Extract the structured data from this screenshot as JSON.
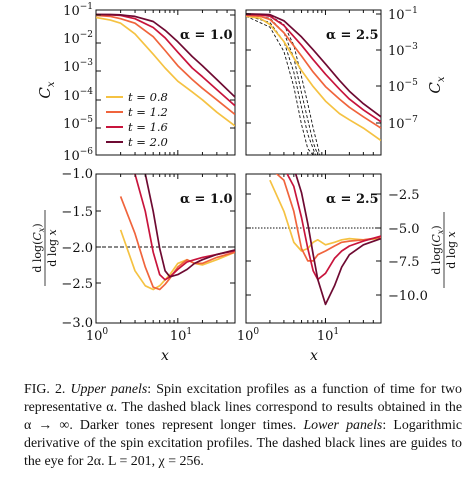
{
  "figure": {
    "legend": {
      "entries": [
        {
          "label": "t = 0.8",
          "color": "#f5c242"
        },
        {
          "label": "t = 1.2",
          "color": "#f0643c"
        },
        {
          "label": "t = 1.6",
          "color": "#c8143c"
        },
        {
          "label": "t = 2.0",
          "color": "#6e0a32"
        }
      ]
    },
    "axis_labels": {
      "top_y": "C_x",
      "bottom_y_left": "d log(C_x) / d log x",
      "bottom_y_right": "d log(C_x) / d log x",
      "x": "x"
    },
    "panel_labels": {
      "top_left": "α = 1.0",
      "top_right": "α = 2.5",
      "bottom_left": "α = 1.0",
      "bottom_right": "α = 2.5"
    }
  },
  "chart_data": [
    {
      "panel": "top-left",
      "type": "line",
      "title": "α = 1.0",
      "xlabel": "",
      "ylabel": "C_x",
      "xscale": "log",
      "yscale": "log",
      "xlim": [
        1,
        50
      ],
      "ylim": [
        1e-06,
        0.1
      ],
      "ytick_labels": [
        "10^-1",
        "10^-2",
        "10^-3",
        "10^-4",
        "10^-5",
        "10^-6"
      ],
      "x": [
        1,
        1.5,
        2,
        3,
        5,
        7,
        10,
        15,
        20,
        30,
        50
      ],
      "series": [
        {
          "name": "t = 0.8",
          "color": "#f5c242",
          "values": [
            0.055,
            0.045,
            0.035,
            0.015,
            0.003,
            0.001,
            0.00035,
            0.00015,
            8e-05,
            3e-05,
            1e-05
          ]
        },
        {
          "name": "t = 1.2",
          "color": "#f0643c",
          "values": [
            0.065,
            0.06,
            0.05,
            0.035,
            0.012,
            0.004,
            0.0012,
            0.0004,
            0.0002,
            8e-05,
            2.5e-05
          ]
        },
        {
          "name": "t = 1.6",
          "color": "#c8143c",
          "values": [
            0.07,
            0.068,
            0.065,
            0.05,
            0.025,
            0.011,
            0.0035,
            0.001,
            0.0005,
            0.00018,
            5e-05
          ]
        },
        {
          "name": "t = 2.0",
          "color": "#6e0a32",
          "values": [
            0.07,
            0.07,
            0.068,
            0.06,
            0.04,
            0.02,
            0.008,
            0.0025,
            0.0012,
            0.0004,
            0.0001
          ]
        }
      ]
    },
    {
      "panel": "top-right",
      "type": "line",
      "title": "α = 2.5",
      "xlabel": "",
      "ylabel": "C_x",
      "xscale": "log",
      "yscale": "log",
      "xlim": [
        1,
        50
      ],
      "ylim": [
        1e-08,
        0.1
      ],
      "ytick_labels": [
        "10^-1",
        "10^-3",
        "10^-5",
        "10^-7"
      ],
      "x": [
        1,
        1.5,
        2,
        3,
        5,
        7,
        10,
        15,
        20,
        30,
        50
      ],
      "series": [
        {
          "name": "t = 0.8",
          "color": "#f5c242",
          "values": [
            0.05,
            0.04,
            0.02,
            0.003,
            0.00012,
            2e-05,
            4e-06,
            1e-06,
            5e-07,
            2e-07,
            5e-08
          ]
        },
        {
          "name": "t = 1.2",
          "color": "#f0643c",
          "values": [
            0.055,
            0.05,
            0.035,
            0.008,
            0.0006,
            0.0001,
            2e-05,
            5e-06,
            2e-06,
            7e-07,
            2e-07
          ]
        },
        {
          "name": "t = 1.6",
          "color": "#c8143c",
          "values": [
            0.06,
            0.058,
            0.05,
            0.018,
            0.002,
            0.0004,
            8e-05,
            1.5e-05,
            5e-06,
            1.5e-06,
            4e-07
          ]
        },
        {
          "name": "t = 2.0",
          "color": "#6e0a32",
          "values": [
            0.065,
            0.063,
            0.06,
            0.03,
            0.005,
            0.0012,
            0.00025,
            4e-05,
            1.2e-05,
            3e-06,
            7e-07
          ]
        }
      ],
      "dashed_reference": [
        {
          "x": [
            1,
            2,
            3,
            4,
            5,
            6,
            7
          ],
          "values": [
            0.05,
            0.015,
            0.001,
            2e-05,
            3e-07,
            2e-08,
            1e-08
          ]
        },
        {
          "x": [
            1,
            2,
            3,
            4,
            5,
            6,
            7.5
          ],
          "values": [
            0.055,
            0.025,
            0.003,
            0.0001,
            2e-06,
            1e-07,
            1e-08
          ]
        },
        {
          "x": [
            1,
            2,
            3,
            4,
            5,
            6,
            7,
            8
          ],
          "values": [
            0.06,
            0.04,
            0.008,
            0.0005,
            1e-05,
            5e-07,
            4e-08,
            1e-08
          ]
        },
        {
          "x": [
            1,
            2,
            3,
            4,
            5,
            6,
            7,
            8.5
          ],
          "values": [
            0.065,
            0.055,
            0.02,
            0.002,
            6e-05,
            3e-06,
            2e-07,
            1e-08
          ]
        }
      ]
    },
    {
      "panel": "bottom-left",
      "type": "line",
      "title": "α = 1.0",
      "xlabel": "x",
      "ylabel": "d log(C_x) / d log x",
      "xscale": "log",
      "yscale": "linear",
      "xlim": [
        1,
        50
      ],
      "ylim": [
        -3.0,
        -1.0
      ],
      "yticks": [
        -1.0,
        -1.5,
        -2.0,
        -2.5,
        -3.0
      ],
      "xtick_labels": [
        "10^0",
        "10^1"
      ],
      "hline": -2.0,
      "x": [
        2,
        3,
        4,
        5,
        6,
        7,
        8,
        10,
        13,
        16,
        20,
        30,
        50
      ],
      "series": [
        {
          "name": "t = 0.8",
          "color": "#f5c242",
          "values": [
            -1.75,
            -2.3,
            -2.5,
            -2.55,
            -2.5,
            -2.42,
            -2.35,
            -2.2,
            -2.15,
            -2.2,
            -2.22,
            -2.15,
            -2.05
          ]
        },
        {
          "name": "t = 1.2",
          "color": "#f0643c",
          "values": [
            -1.3,
            -1.8,
            -2.25,
            -2.52,
            -2.55,
            -2.48,
            -2.4,
            -2.25,
            -2.15,
            -2.2,
            -2.2,
            -2.12,
            -2.05
          ]
        },
        {
          "name": "t = 1.6",
          "color": "#c8143c",
          "values": [
            -0.9,
            -1.0,
            -1.5,
            -2.05,
            -2.35,
            -2.42,
            -2.38,
            -2.28,
            -2.18,
            -2.15,
            -2.12,
            -2.08,
            -2.03
          ]
        },
        {
          "name": "t = 2.0",
          "color": "#6e0a32",
          "values": [
            -0.8,
            -0.9,
            -1.0,
            -1.5,
            -2.0,
            -2.3,
            -2.38,
            -2.35,
            -2.28,
            -2.2,
            -2.15,
            -2.08,
            -2.02
          ]
        }
      ]
    },
    {
      "panel": "bottom-right",
      "type": "line",
      "title": "α = 2.5",
      "xlabel": "x",
      "ylabel": "d log(C_x) / d log x",
      "xscale": "log",
      "yscale": "linear",
      "xlim": [
        1,
        50
      ],
      "ylim": [
        -12.0,
        0.0
      ],
      "yticks": [
        -2.5,
        -5.0,
        -7.5,
        -10.0
      ],
      "xtick_labels": [
        "10^0",
        "10^1"
      ],
      "hline": -5.0,
      "x": [
        2,
        3,
        4,
        5,
        6,
        7,
        8,
        10,
        13,
        16,
        20,
        30,
        50
      ],
      "series": [
        {
          "name": "t = 0.8",
          "color": "#f5c242",
          "values": [
            -0.5,
            -3.0,
            -5.5,
            -6.2,
            -6.0,
            -5.5,
            -5.3,
            -5.7,
            -5.5,
            -5.3,
            -5.2,
            -5.3,
            -5.2
          ]
        },
        {
          "name": "t = 1.2",
          "color": "#f0643c",
          "values": [
            0.5,
            -0.5,
            -3.0,
            -6.0,
            -7.0,
            -7.0,
            -6.5,
            -6.2,
            -5.8,
            -5.5,
            -5.4,
            -5.3,
            -5.1
          ]
        },
        {
          "name": "t = 1.6",
          "color": "#c8143c",
          "values": [
            1.0,
            0.5,
            -1.0,
            -3.5,
            -6.0,
            -7.8,
            -8.5,
            -8.0,
            -6.8,
            -6.2,
            -5.8,
            -5.4,
            -5.0
          ]
        },
        {
          "name": "t = 2.0",
          "color": "#6e0a32",
          "values": [
            1.0,
            1.0,
            0.5,
            -1.5,
            -4.0,
            -6.5,
            -8.5,
            -10.5,
            -9.0,
            -7.5,
            -6.5,
            -5.7,
            -5.2
          ]
        }
      ]
    }
  ],
  "caption": {
    "label": "FIG. 2.",
    "upper_title": "Upper panels",
    "upper_text": ": Spin excitation profiles as a function of time for two representative α. The dashed black lines correspond to results obtained in the α → ∞. Darker tones represent longer times.",
    "lower_title": "Lower panels",
    "lower_text": ": Logarithmic derivative of the spin excitation profiles. The dashed black lines are guides to the eye for 2α. L = 201, χ = 256."
  }
}
